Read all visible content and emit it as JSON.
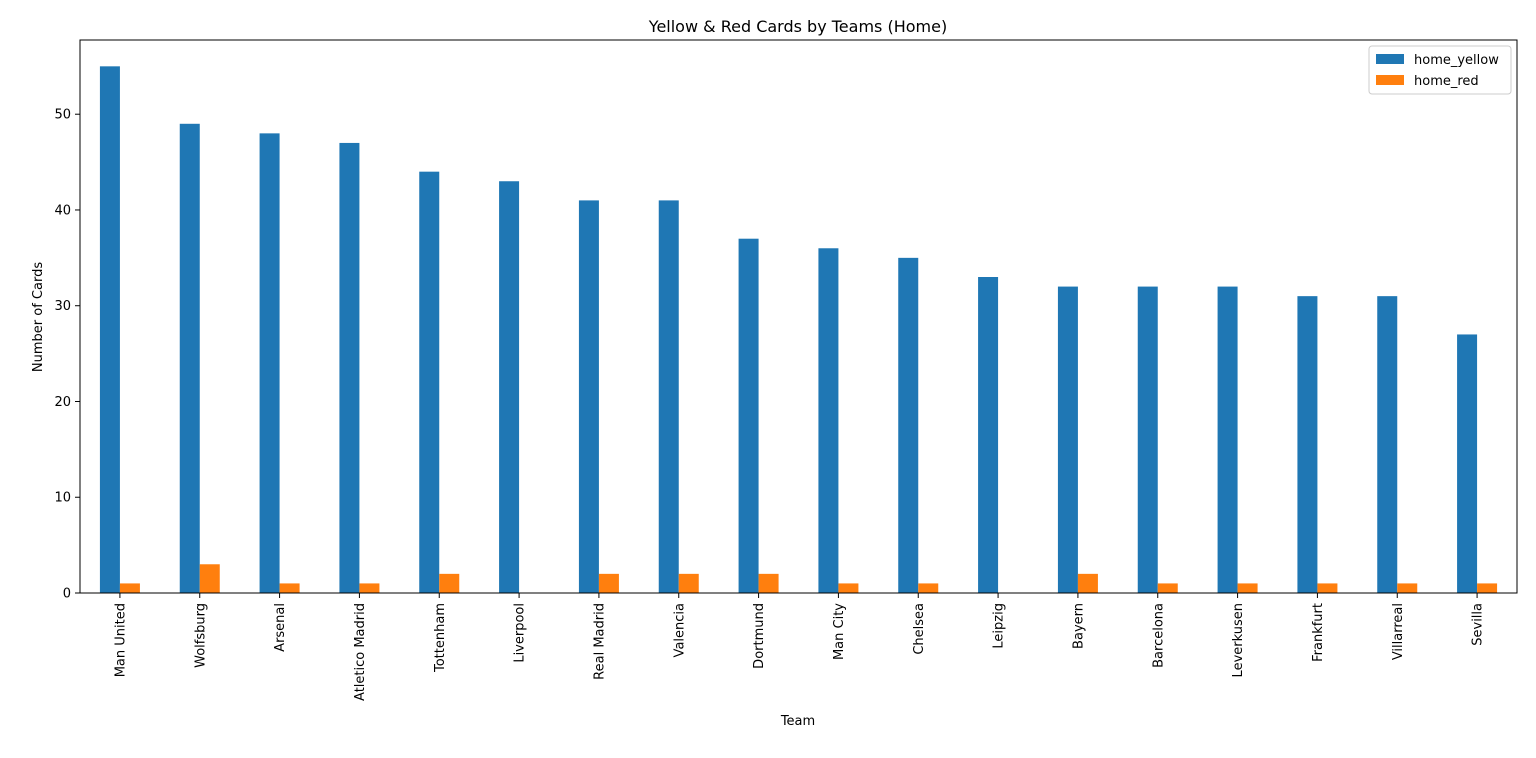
{
  "chart_data": {
    "type": "bar",
    "title": "Yellow & Red Cards by Teams (Home)",
    "xlabel": "Team",
    "ylabel": "Number of Cards",
    "categories": [
      "Man United",
      "Wolfsburg",
      "Arsenal",
      "Atletico Madrid",
      "Tottenham",
      "Liverpool",
      "Real Madrid",
      "Valencia",
      "Dortmund",
      "Man City",
      "Chelsea",
      "Leipzig",
      "Bayern",
      "Barcelona",
      "Leverkusen",
      "Frankfurt",
      "Villarreal",
      "Sevilla"
    ],
    "series": [
      {
        "name": "home_yellow",
        "color": "#1f77b4",
        "values": [
          55,
          49,
          48,
          47,
          44,
          43,
          41,
          41,
          37,
          36,
          35,
          33,
          32,
          32,
          32,
          31,
          31,
          27
        ]
      },
      {
        "name": "home_red",
        "color": "#ff7f0e",
        "values": [
          1,
          3,
          1,
          1,
          2,
          0,
          2,
          2,
          2,
          1,
          1,
          0,
          2,
          1,
          1,
          1,
          1,
          1
        ]
      }
    ],
    "ylim": [
      0,
      57.75
    ],
    "yticks": [
      0,
      10,
      20,
      30,
      40,
      50
    ],
    "grid": false,
    "legend": "top-right"
  }
}
